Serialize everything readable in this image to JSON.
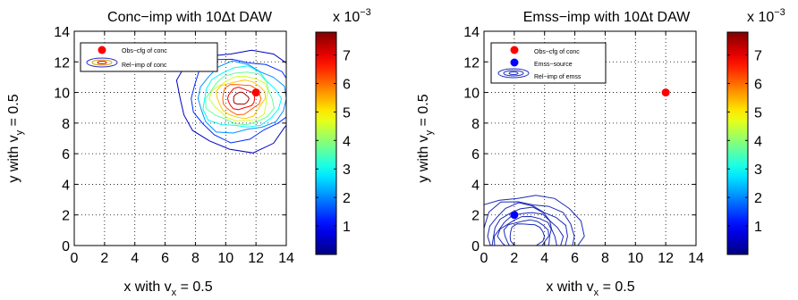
{
  "chart_data": [
    {
      "type": "contour",
      "title": "Conc−imp with 10Δt DAW",
      "xlabel": "x with v",
      "xlabel_sub": "x",
      "xlabel_suffix": " = 0.5",
      "ylabel": "y with  v",
      "ylabel_sub": "y",
      "ylabel_suffix": " = 0.5",
      "xlim": [
        0,
        14
      ],
      "ylim": [
        0,
        14
      ],
      "xticks": [
        "0",
        "2",
        "4",
        "6",
        "8",
        "10",
        "12",
        "14"
      ],
      "yticks": [
        "0",
        "2",
        "4",
        "6",
        "8",
        "10",
        "12",
        "14"
      ],
      "grid": true,
      "legend": {
        "position": "top-left",
        "entries": [
          "Obs−cfg of conc",
          "Rel−imp of conc"
        ]
      },
      "points": [
        {
          "name": "Obs−cfg of conc",
          "x": 2,
          "y": 13,
          "color": "#ff0000"
        },
        {
          "name": "obs",
          "x": 12,
          "y": 10,
          "color": "#ff0000"
        }
      ],
      "contour_field": {
        "center": [
          11.0,
          9.6
        ],
        "peak": 7.8,
        "sigma_x": 1.8,
        "sigma_y": 1.4,
        "levels": [
          0.5,
          1.3,
          2.1,
          2.9,
          3.7,
          4.5,
          5.3,
          6.1,
          6.9,
          7.5
        ]
      }
    },
    {
      "type": "contour",
      "title": "Emss−imp with 10Δt DAW",
      "xlabel": "x with v",
      "xlabel_sub": "x",
      "xlabel_suffix": " = 0.5",
      "ylabel": "y with  v",
      "ylabel_sub": "y",
      "ylabel_suffix": " = 0.5",
      "xlim": [
        0,
        14
      ],
      "ylim": [
        0,
        14
      ],
      "xticks": [
        "0",
        "2",
        "4",
        "6",
        "8",
        "10",
        "12",
        "14"
      ],
      "yticks": [
        "0",
        "2",
        "4",
        "6",
        "8",
        "10",
        "12",
        "14"
      ],
      "grid": true,
      "legend": {
        "position": "top-left",
        "entries": [
          "Obs−cfg of conc",
          "Emss−source",
          "Rel−imp of emss"
        ]
      },
      "points": [
        {
          "name": "Obs−cfg of conc",
          "x": 2,
          "y": 13,
          "color": "#ff0000"
        },
        {
          "name": "Emss−source",
          "x": 2,
          "y": 2,
          "color": "#0000ff"
        },
        {
          "name": "obs",
          "x": 12,
          "y": 10,
          "color": "#ff0000"
        }
      ],
      "contour_field": {
        "center": [
          2.8,
          0.6
        ],
        "peak": 1.0,
        "sigma_x": 1.7,
        "sigma_y": 1.3,
        "levels": [
          0.1,
          0.2,
          0.3,
          0.4,
          0.5,
          0.6,
          0.7,
          0.8
        ]
      }
    }
  ],
  "colorbar": {
    "multiplier_label": "x 10",
    "multiplier_exp": "−3",
    "ticks": [
      "1",
      "2",
      "3",
      "4",
      "5",
      "6",
      "7"
    ],
    "range": [
      0,
      7.8
    ]
  }
}
